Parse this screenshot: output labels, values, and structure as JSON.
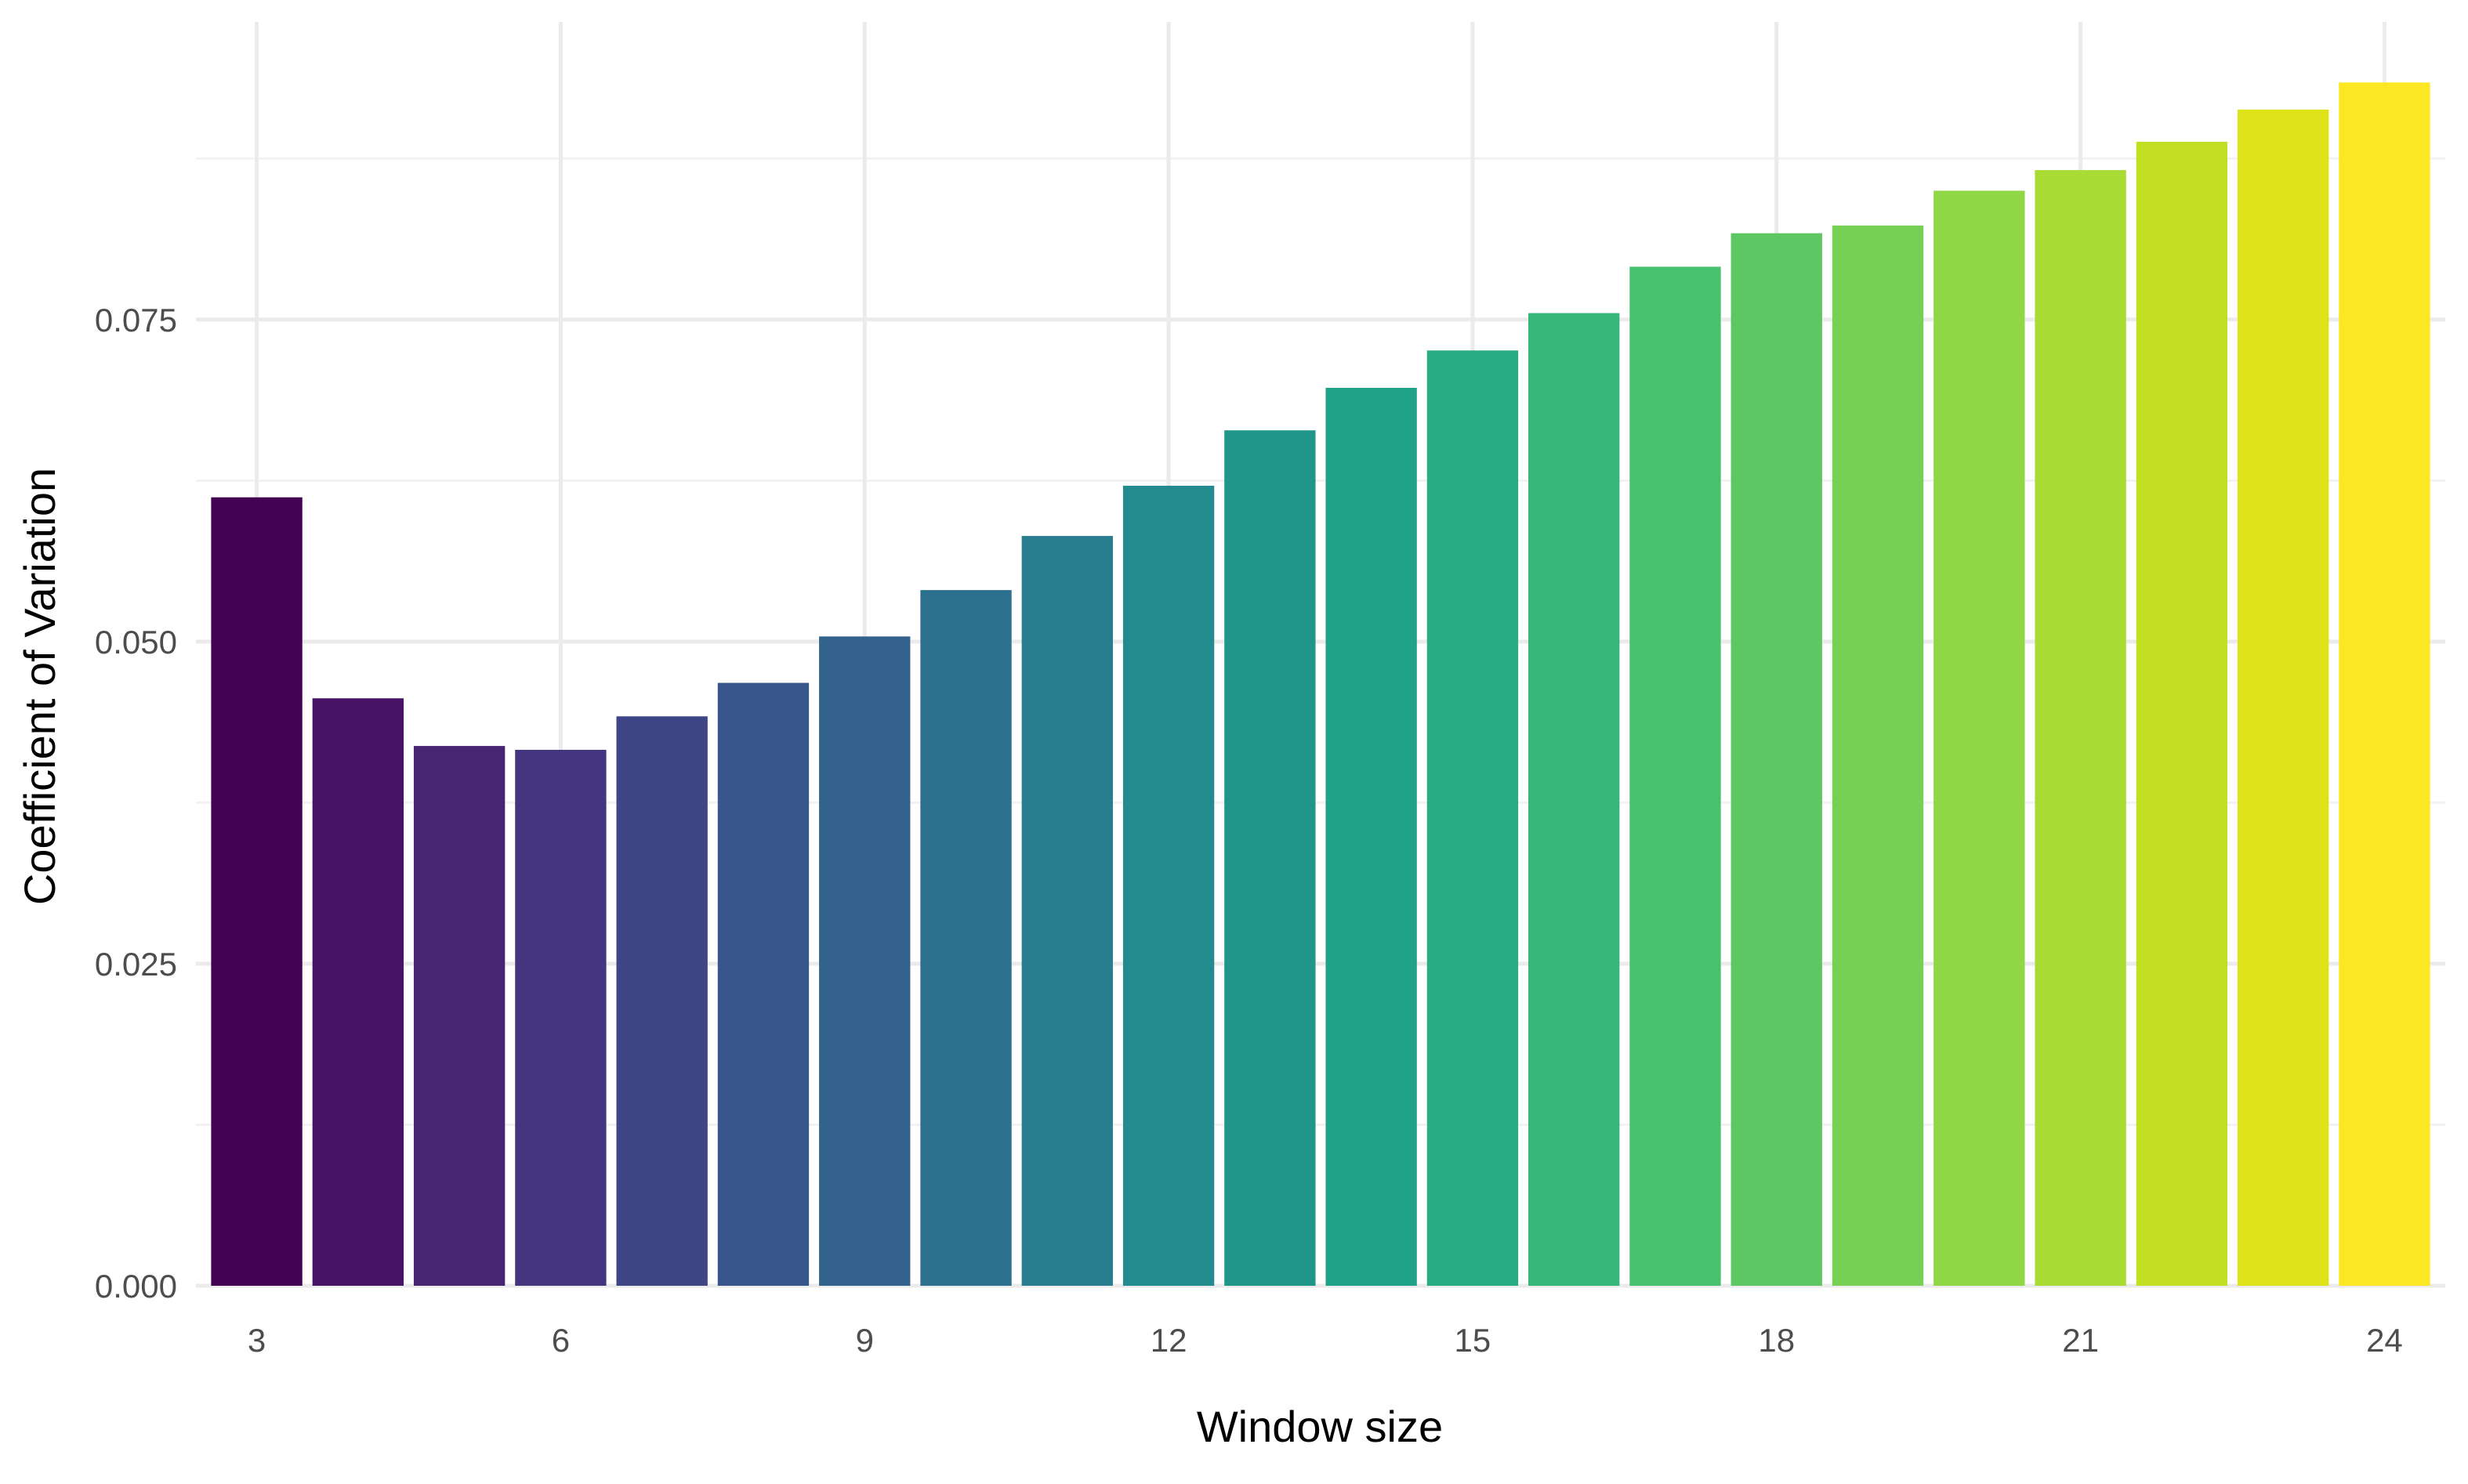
{
  "chart_data": {
    "type": "bar",
    "title": "",
    "xlabel": "Window size",
    "ylabel": "Coefficient of Variation",
    "x": [
      3,
      4,
      5,
      6,
      7,
      8,
      9,
      10,
      11,
      12,
      13,
      14,
      15,
      16,
      17,
      18,
      19,
      20,
      21,
      22,
      23,
      24
    ],
    "values": [
      0.0612,
      0.0456,
      0.0419,
      0.0416,
      0.0442,
      0.0468,
      0.0504,
      0.054,
      0.0582,
      0.0621,
      0.0664,
      0.0697,
      0.0726,
      0.0755,
      0.0791,
      0.0817,
      0.0823,
      0.085,
      0.0866,
      0.0888,
      0.0913,
      0.0934
    ],
    "colors": [
      "#440154",
      "#471366",
      "#472575",
      "#453581",
      "#3f4688",
      "#39568c",
      "#33638d",
      "#2d708e",
      "#287d8e",
      "#238a8d",
      "#20968b",
      "#1fa286",
      "#27ad81",
      "#35b779",
      "#47c16e",
      "#5dc863",
      "#75d054",
      "#8fd744",
      "#a8db34",
      "#c2df23",
      "#dde318",
      "#fde725"
    ],
    "x_ticks": [
      3,
      6,
      9,
      12,
      15,
      18,
      21,
      24
    ],
    "x_tick_labels": [
      "3",
      "6",
      "9",
      "12",
      "15",
      "18",
      "21",
      "24"
    ],
    "y_ticks": [
      0.0,
      0.025,
      0.05,
      0.075
    ],
    "y_tick_labels": [
      "0.000",
      "0.025",
      "0.050",
      "0.075"
    ],
    "ylim": [
      0,
      0.0981
    ],
    "xlim": [
      2.4,
      24.6
    ],
    "grid": true,
    "legend": "none"
  }
}
